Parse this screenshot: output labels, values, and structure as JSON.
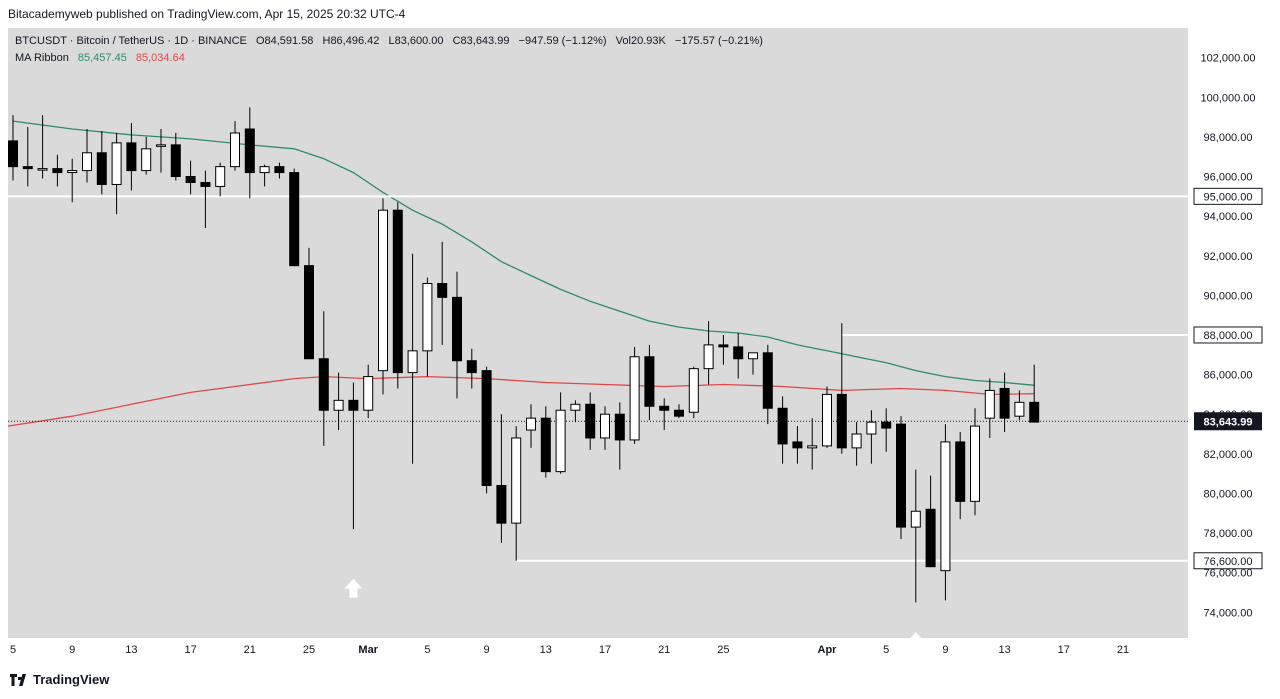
{
  "header": {
    "publisher": "Bitacademyweb published on TradingView.com, Apr 15, 2025 20:32 UTC-4"
  },
  "legend": {
    "symbol": "BTCUSDT · Bitcoin / TetherUS · 1D · BINANCE",
    "open": "O84,591.58",
    "high": "H86,496.42",
    "low": "L83,600.00",
    "close": "C83,643.99",
    "change": "−947.59 (−1.12%)",
    "volume": "Vol20.93K",
    "volume_change": "−175.57 (−0.21%)",
    "indicator_name": "MA Ribbon",
    "ma_fast": "85,457.45",
    "ma_slow": "85,034.64"
  },
  "footer": {
    "brand": "TradingView"
  },
  "chart_data": {
    "type": "candlestick",
    "colors": {
      "up": "#ffffff",
      "down": "#000000",
      "wick": "#000000",
      "ma_fast": "#2e8b6f",
      "ma_slow": "#e04848",
      "level": "#ffffff",
      "background": "#dadada"
    },
    "ylim": [
      72700,
      103500
    ],
    "y_ticks": [
      "74,000.00",
      "76,000.00",
      "78,000.00",
      "80,000.00",
      "82,000.00",
      "84,000.00",
      "86,000.00",
      "88,000.00",
      "90,000.00",
      "92,000.00",
      "94,000.00",
      "96,000.00",
      "98,000.00",
      "100,000.00",
      "102,000.00"
    ],
    "x_ticks": [
      {
        "label": "5",
        "day": 0
      },
      {
        "label": "9",
        "day": 4
      },
      {
        "label": "13",
        "day": 8
      },
      {
        "label": "17",
        "day": 12
      },
      {
        "label": "21",
        "day": 16
      },
      {
        "label": "25",
        "day": 20
      },
      {
        "label": "Mar",
        "day": 24
      },
      {
        "label": "5",
        "day": 28
      },
      {
        "label": "9",
        "day": 32
      },
      {
        "label": "13",
        "day": 36
      },
      {
        "label": "17",
        "day": 40
      },
      {
        "label": "21",
        "day": 44
      },
      {
        "label": "25",
        "day": 48
      },
      {
        "label": "Apr",
        "day": 55
      },
      {
        "label": "5",
        "day": 59
      },
      {
        "label": "9",
        "day": 63
      },
      {
        "label": "13",
        "day": 67
      },
      {
        "label": "17",
        "day": 71
      },
      {
        "label": "21",
        "day": 75
      }
    ],
    "candles": [
      {
        "day": 0,
        "o": 97800,
        "h": 99100,
        "l": 95800,
        "c": 96500
      },
      {
        "day": 1,
        "o": 96500,
        "h": 98500,
        "l": 95500,
        "c": 96400
      },
      {
        "day": 2,
        "o": 96400,
        "h": 99100,
        "l": 95900,
        "c": 96400
      },
      {
        "day": 3,
        "o": 96400,
        "h": 97100,
        "l": 95500,
        "c": 96200
      },
      {
        "day": 4,
        "o": 96200,
        "h": 96900,
        "l": 94700,
        "c": 96300
      },
      {
        "day": 5,
        "o": 96300,
        "h": 98400,
        "l": 95700,
        "c": 97200
      },
      {
        "day": 6,
        "o": 97200,
        "h": 98300,
        "l": 95100,
        "c": 95600
      },
      {
        "day": 7,
        "o": 95600,
        "h": 98200,
        "l": 94100,
        "c": 97700
      },
      {
        "day": 8,
        "o": 97700,
        "h": 98700,
        "l": 95300,
        "c": 96300
      },
      {
        "day": 9,
        "o": 96300,
        "h": 98000,
        "l": 96100,
        "c": 97400
      },
      {
        "day": 10,
        "o": 97600,
        "h": 98400,
        "l": 96200,
        "c": 97600
      },
      {
        "day": 11,
        "o": 97600,
        "h": 98200,
        "l": 95800,
        "c": 96000
      },
      {
        "day": 12,
        "o": 96000,
        "h": 96800,
        "l": 95100,
        "c": 95700
      },
      {
        "day": 13,
        "o": 95700,
        "h": 96300,
        "l": 93400,
        "c": 95500
      },
      {
        "day": 14,
        "o": 95500,
        "h": 96700,
        "l": 95000,
        "c": 96500
      },
      {
        "day": 15,
        "o": 96500,
        "h": 98800,
        "l": 96300,
        "c": 98200
      },
      {
        "day": 16,
        "o": 98400,
        "h": 99500,
        "l": 94900,
        "c": 96200
      },
      {
        "day": 17,
        "o": 96200,
        "h": 96600,
        "l": 95500,
        "c": 96500
      },
      {
        "day": 18,
        "o": 96500,
        "h": 96700,
        "l": 95900,
        "c": 96200
      },
      {
        "day": 19,
        "o": 96200,
        "h": 96400,
        "l": 91500,
        "c": 91500
      },
      {
        "day": 20,
        "o": 91500,
        "h": 92400,
        "l": 86800,
        "c": 86800
      },
      {
        "day": 21,
        "o": 86800,
        "h": 89200,
        "l": 82400,
        "c": 84200
      },
      {
        "day": 22,
        "o": 84200,
        "h": 86100,
        "l": 83200,
        "c": 84700
      },
      {
        "day": 23,
        "o": 84700,
        "h": 85600,
        "l": 78200,
        "c": 84200
      },
      {
        "day": 24,
        "o": 84200,
        "h": 86500,
        "l": 83800,
        "c": 85900
      },
      {
        "day": 25,
        "o": 86200,
        "h": 94900,
        "l": 85000,
        "c": 94300
      },
      {
        "day": 26,
        "o": 94300,
        "h": 94700,
        "l": 85300,
        "c": 86100
      },
      {
        "day": 27,
        "o": 86100,
        "h": 92100,
        "l": 81500,
        "c": 87200
      },
      {
        "day": 28,
        "o": 87200,
        "h": 90900,
        "l": 85900,
        "c": 90600
      },
      {
        "day": 29,
        "o": 90600,
        "h": 92700,
        "l": 87500,
        "c": 89900
      },
      {
        "day": 30,
        "o": 89900,
        "h": 91200,
        "l": 84800,
        "c": 86700
      },
      {
        "day": 31,
        "o": 86700,
        "h": 87300,
        "l": 85300,
        "c": 86100
      },
      {
        "day": 32,
        "o": 86200,
        "h": 86400,
        "l": 80000,
        "c": 80400
      },
      {
        "day": 33,
        "o": 80400,
        "h": 84000,
        "l": 77500,
        "c": 78500
      },
      {
        "day": 34,
        "o": 78500,
        "h": 83400,
        "l": 76600,
        "c": 82800
      },
      {
        "day": 35,
        "o": 83200,
        "h": 84500,
        "l": 82300,
        "c": 83800
      },
      {
        "day": 36,
        "o": 83800,
        "h": 84400,
        "l": 80800,
        "c": 81100
      },
      {
        "day": 37,
        "o": 81100,
        "h": 85100,
        "l": 81000,
        "c": 84200
      },
      {
        "day": 38,
        "o": 84200,
        "h": 84700,
        "l": 83600,
        "c": 84500
      },
      {
        "day": 39,
        "o": 84500,
        "h": 85100,
        "l": 82200,
        "c": 82800
      },
      {
        "day": 40,
        "o": 82800,
        "h": 84400,
        "l": 82200,
        "c": 84000
      },
      {
        "day": 41,
        "o": 84000,
        "h": 84600,
        "l": 81200,
        "c": 82700
      },
      {
        "day": 42,
        "o": 82700,
        "h": 87400,
        "l": 82500,
        "c": 86900
      },
      {
        "day": 43,
        "o": 86900,
        "h": 87500,
        "l": 83700,
        "c": 84400
      },
      {
        "day": 44,
        "o": 84400,
        "h": 84800,
        "l": 83200,
        "c": 84200
      },
      {
        "day": 45,
        "o": 84200,
        "h": 84500,
        "l": 83800,
        "c": 83900
      },
      {
        "day": 46,
        "o": 84100,
        "h": 86400,
        "l": 83800,
        "c": 86300
      },
      {
        "day": 47,
        "o": 86300,
        "h": 88700,
        "l": 85500,
        "c": 87500
      },
      {
        "day": 48,
        "o": 87500,
        "h": 88000,
        "l": 86500,
        "c": 87400
      },
      {
        "day": 49,
        "o": 87400,
        "h": 88100,
        "l": 85800,
        "c": 86800
      },
      {
        "day": 50,
        "o": 86800,
        "h": 87000,
        "l": 86000,
        "c": 87100
      },
      {
        "day": 51,
        "o": 87100,
        "h": 87500,
        "l": 83500,
        "c": 84300
      },
      {
        "day": 52,
        "o": 84300,
        "h": 84900,
        "l": 81500,
        "c": 82500
      },
      {
        "day": 53,
        "o": 82600,
        "h": 83400,
        "l": 81500,
        "c": 82300
      },
      {
        "day": 54,
        "o": 82300,
        "h": 83800,
        "l": 81200,
        "c": 82400
      },
      {
        "day": 55,
        "o": 82400,
        "h": 85400,
        "l": 82300,
        "c": 85000
      },
      {
        "day": 56,
        "o": 85000,
        "h": 88600,
        "l": 82000,
        "c": 82300
      },
      {
        "day": 57,
        "o": 82300,
        "h": 83600,
        "l": 81400,
        "c": 83000
      },
      {
        "day": 58,
        "o": 83000,
        "h": 84200,
        "l": 81500,
        "c": 83600
      },
      {
        "day": 59,
        "o": 83600,
        "h": 84300,
        "l": 82100,
        "c": 83300
      },
      {
        "day": 60,
        "o": 83500,
        "h": 83900,
        "l": 77700,
        "c": 78300
      },
      {
        "day": 61,
        "o": 78300,
        "h": 81200,
        "l": 74500,
        "c": 79100
      },
      {
        "day": 62,
        "o": 79200,
        "h": 80900,
        "l": 76300,
        "c": 76300
      },
      {
        "day": 63,
        "o": 76100,
        "h": 83500,
        "l": 74600,
        "c": 82600
      },
      {
        "day": 64,
        "o": 82600,
        "h": 83100,
        "l": 78700,
        "c": 79600
      },
      {
        "day": 65,
        "o": 79600,
        "h": 84300,
        "l": 78900,
        "c": 83400
      },
      {
        "day": 66,
        "o": 83800,
        "h": 85800,
        "l": 82800,
        "c": 85200
      },
      {
        "day": 67,
        "o": 85300,
        "h": 86100,
        "l": 83100,
        "c": 83800
      },
      {
        "day": 68,
        "o": 83900,
        "h": 85200,
        "l": 83700,
        "c": 84600
      },
      {
        "day": 69,
        "o": 84600,
        "h": 86500,
        "l": 83600,
        "c": 83600
      }
    ],
    "ma_fast": [
      {
        "day": 0,
        "v": 98800
      },
      {
        "day": 4,
        "v": 98400
      },
      {
        "day": 8,
        "v": 98100
      },
      {
        "day": 12,
        "v": 97900
      },
      {
        "day": 16,
        "v": 97600
      },
      {
        "day": 19,
        "v": 97400
      },
      {
        "day": 21,
        "v": 96900
      },
      {
        "day": 23,
        "v": 96200
      },
      {
        "day": 25,
        "v": 95200
      },
      {
        "day": 27,
        "v": 94300
      },
      {
        "day": 29,
        "v": 93600
      },
      {
        "day": 31,
        "v": 92700
      },
      {
        "day": 33,
        "v": 91700
      },
      {
        "day": 35,
        "v": 91000
      },
      {
        "day": 37,
        "v": 90300
      },
      {
        "day": 39,
        "v": 89700
      },
      {
        "day": 41,
        "v": 89200
      },
      {
        "day": 43,
        "v": 88700
      },
      {
        "day": 45,
        "v": 88400
      },
      {
        "day": 47,
        "v": 88200
      },
      {
        "day": 49,
        "v": 88100
      },
      {
        "day": 51,
        "v": 87900
      },
      {
        "day": 53,
        "v": 87500
      },
      {
        "day": 55,
        "v": 87200
      },
      {
        "day": 57,
        "v": 86900
      },
      {
        "day": 59,
        "v": 86600
      },
      {
        "day": 61,
        "v": 86200
      },
      {
        "day": 63,
        "v": 85900
      },
      {
        "day": 65,
        "v": 85700
      },
      {
        "day": 67,
        "v": 85600
      },
      {
        "day": 69,
        "v": 85457
      }
    ],
    "ma_slow": [
      {
        "day": -1,
        "v": 83400
      },
      {
        "day": 4,
        "v": 83900
      },
      {
        "day": 8,
        "v": 84500
      },
      {
        "day": 12,
        "v": 85100
      },
      {
        "day": 16,
        "v": 85500
      },
      {
        "day": 19,
        "v": 85800
      },
      {
        "day": 21,
        "v": 85900
      },
      {
        "day": 24,
        "v": 85800
      },
      {
        "day": 28,
        "v": 85900
      },
      {
        "day": 32,
        "v": 85800
      },
      {
        "day": 36,
        "v": 85600
      },
      {
        "day": 40,
        "v": 85500
      },
      {
        "day": 44,
        "v": 85400
      },
      {
        "day": 48,
        "v": 85500
      },
      {
        "day": 52,
        "v": 85400
      },
      {
        "day": 56,
        "v": 85200
      },
      {
        "day": 60,
        "v": 85300
      },
      {
        "day": 63,
        "v": 85200
      },
      {
        "day": 66,
        "v": 85000
      },
      {
        "day": 69,
        "v": 85035
      }
    ],
    "levels": [
      {
        "price": 95000,
        "label": "95,000.00",
        "start_day": -1
      },
      {
        "price": 88000,
        "label": "88,000.00",
        "start_day": 56
      },
      {
        "price": 76600,
        "label": "76,600.00",
        "start_day": 34
      }
    ],
    "last_price": {
      "value": 83643.99,
      "label": "83,643.99"
    },
    "annotations": [
      {
        "type": "arrow-up",
        "day": 23,
        "price": 75700
      },
      {
        "type": "arrow-up",
        "day": 61,
        "price": 73000
      }
    ]
  }
}
